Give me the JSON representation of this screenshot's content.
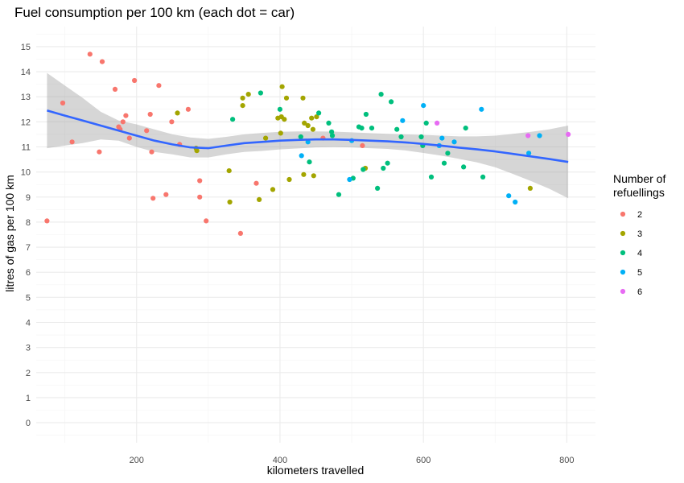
{
  "chart_data": {
    "type": "scatter",
    "title": "Fuel consumption per 100 km (each dot = car)",
    "xlabel": "kilometers travelled",
    "ylabel": "litres of gas per 100 km",
    "xlim": [
      60,
      840
    ],
    "ylim": [
      -0.8,
      15.8
    ],
    "x_ticks": [
      200,
      400,
      600,
      800
    ],
    "y_ticks": [
      0,
      1,
      2,
      3,
      4,
      5,
      6,
      7,
      8,
      9,
      10,
      11,
      12,
      13,
      14,
      15
    ],
    "grid": true,
    "legend": {
      "title": "Number of\nrefuellings",
      "position": "right",
      "entries": [
        {
          "label": "2",
          "color": "#F8766D"
        },
        {
          "label": "3",
          "color": "#A3A500"
        },
        {
          "label": "4",
          "color": "#00BF7D"
        },
        {
          "label": "5",
          "color": "#00B0F6"
        },
        {
          "label": "6",
          "color": "#E76BF3"
        }
      ]
    },
    "series": [
      {
        "name": "2",
        "color": "#F8766D",
        "points": [
          [
            75,
            8.05
          ],
          [
            97,
            12.75
          ],
          [
            110,
            11.2
          ],
          [
            135,
            14.7
          ],
          [
            148,
            10.8
          ],
          [
            152,
            14.4
          ],
          [
            170,
            13.3
          ],
          [
            175,
            11.8
          ],
          [
            177,
            11.7
          ],
          [
            181,
            12.0
          ],
          [
            185,
            12.25
          ],
          [
            190,
            11.35
          ],
          [
            197,
            13.65
          ],
          [
            214,
            11.65
          ],
          [
            219,
            12.3
          ],
          [
            221,
            10.8
          ],
          [
            223,
            8.95
          ],
          [
            231,
            13.45
          ],
          [
            241,
            9.1
          ],
          [
            249,
            12.0
          ],
          [
            260,
            11.1
          ],
          [
            272,
            12.5
          ],
          [
            288,
            9.65
          ],
          [
            288,
            9.0
          ],
          [
            297,
            8.05
          ],
          [
            345,
            7.55
          ],
          [
            367,
            9.55
          ],
          [
            460,
            11.35
          ],
          [
            515,
            11.05
          ]
        ]
      },
      {
        "name": "3",
        "color": "#A3A500",
        "points": [
          [
            257,
            12.35
          ],
          [
            283,
            10.95
          ],
          [
            284,
            10.85
          ],
          [
            329,
            10.05
          ],
          [
            330,
            8.8
          ],
          [
            348,
            12.95
          ],
          [
            348,
            12.65
          ],
          [
            356,
            13.1
          ],
          [
            371,
            8.9
          ],
          [
            380,
            11.35
          ],
          [
            390,
            9.3
          ],
          [
            397,
            12.15
          ],
          [
            401,
            11.55
          ],
          [
            402,
            12.2
          ],
          [
            403,
            13.4
          ],
          [
            406,
            12.1
          ],
          [
            409,
            12.95
          ],
          [
            413,
            9.7
          ],
          [
            432,
            12.95
          ],
          [
            433,
            9.9
          ],
          [
            434,
            11.95
          ],
          [
            439,
            11.85
          ],
          [
            444,
            12.15
          ],
          [
            446,
            11.7
          ],
          [
            447,
            9.85
          ],
          [
            451,
            12.2
          ],
          [
            519,
            10.15
          ],
          [
            749,
            9.35
          ]
        ]
      },
      {
        "name": "4",
        "color": "#00BF7D",
        "points": [
          [
            334,
            12.1
          ],
          [
            373,
            13.15
          ],
          [
            400,
            12.5
          ],
          [
            429,
            11.4
          ],
          [
            441,
            10.4
          ],
          [
            454,
            12.35
          ],
          [
            468,
            11.95
          ],
          [
            472,
            11.6
          ],
          [
            473,
            11.45
          ],
          [
            482,
            9.1
          ],
          [
            502,
            9.75
          ],
          [
            510,
            11.8
          ],
          [
            514,
            11.75
          ],
          [
            516,
            10.1
          ],
          [
            520,
            12.3
          ],
          [
            528,
            11.75
          ],
          [
            536,
            9.35
          ],
          [
            541,
            13.1
          ],
          [
            544,
            10.15
          ],
          [
            550,
            10.35
          ],
          [
            555,
            12.8
          ],
          [
            563,
            11.7
          ],
          [
            569,
            11.4
          ],
          [
            597,
            11.4
          ],
          [
            599,
            11.05
          ],
          [
            604,
            11.95
          ],
          [
            611,
            9.8
          ],
          [
            629,
            10.35
          ],
          [
            634,
            10.75
          ],
          [
            656,
            10.2
          ],
          [
            659,
            11.75
          ],
          [
            683,
            9.8
          ]
        ]
      },
      {
        "name": "5",
        "color": "#00B0F6",
        "points": [
          [
            430,
            10.65
          ],
          [
            439,
            11.2
          ],
          [
            497,
            9.7
          ],
          [
            500,
            11.25
          ],
          [
            571,
            12.05
          ],
          [
            600,
            12.65
          ],
          [
            622,
            11.05
          ],
          [
            626,
            11.35
          ],
          [
            643,
            11.2
          ],
          [
            681,
            12.5
          ],
          [
            719,
            9.05
          ],
          [
            728,
            8.8
          ],
          [
            747,
            10.75
          ],
          [
            762,
            11.45
          ]
        ]
      },
      {
        "name": "6",
        "color": "#E76BF3",
        "points": [
          [
            619,
            11.95
          ],
          [
            746,
            11.45
          ],
          [
            802,
            11.5
          ]
        ]
      }
    ],
    "smooth": {
      "method": "loess",
      "color": "#3366FF",
      "band_color": "#999999",
      "x": [
        75,
        100,
        125,
        150,
        175,
        200,
        225,
        250,
        275,
        300,
        325,
        350,
        375,
        400,
        425,
        450,
        475,
        500,
        525,
        550,
        575,
        600,
        625,
        650,
        675,
        700,
        725,
        750,
        775,
        802
      ],
      "y": [
        12.45,
        12.25,
        12.05,
        11.85,
        11.65,
        11.45,
        11.25,
        11.1,
        10.98,
        10.95,
        11.05,
        11.15,
        11.2,
        11.25,
        11.28,
        11.3,
        11.3,
        11.28,
        11.25,
        11.22,
        11.18,
        11.12,
        11.05,
        10.97,
        10.9,
        10.82,
        10.72,
        10.62,
        10.52,
        10.4
      ],
      "upper": [
        13.95,
        13.45,
        12.95,
        12.4,
        12.05,
        11.9,
        11.7,
        11.5,
        11.38,
        11.32,
        11.4,
        11.5,
        11.56,
        11.6,
        11.62,
        11.62,
        11.61,
        11.58,
        11.55,
        11.52,
        11.5,
        11.48,
        11.45,
        11.42,
        11.42,
        11.45,
        11.52,
        11.6,
        11.7,
        11.85
      ],
      "lower": [
        10.95,
        11.05,
        11.15,
        11.3,
        11.25,
        11.0,
        10.8,
        10.7,
        10.58,
        10.58,
        10.7,
        10.8,
        10.84,
        10.9,
        10.94,
        10.98,
        10.99,
        10.98,
        10.95,
        10.92,
        10.86,
        10.76,
        10.65,
        10.52,
        10.38,
        10.19,
        9.92,
        9.64,
        9.34,
        8.95
      ]
    }
  }
}
